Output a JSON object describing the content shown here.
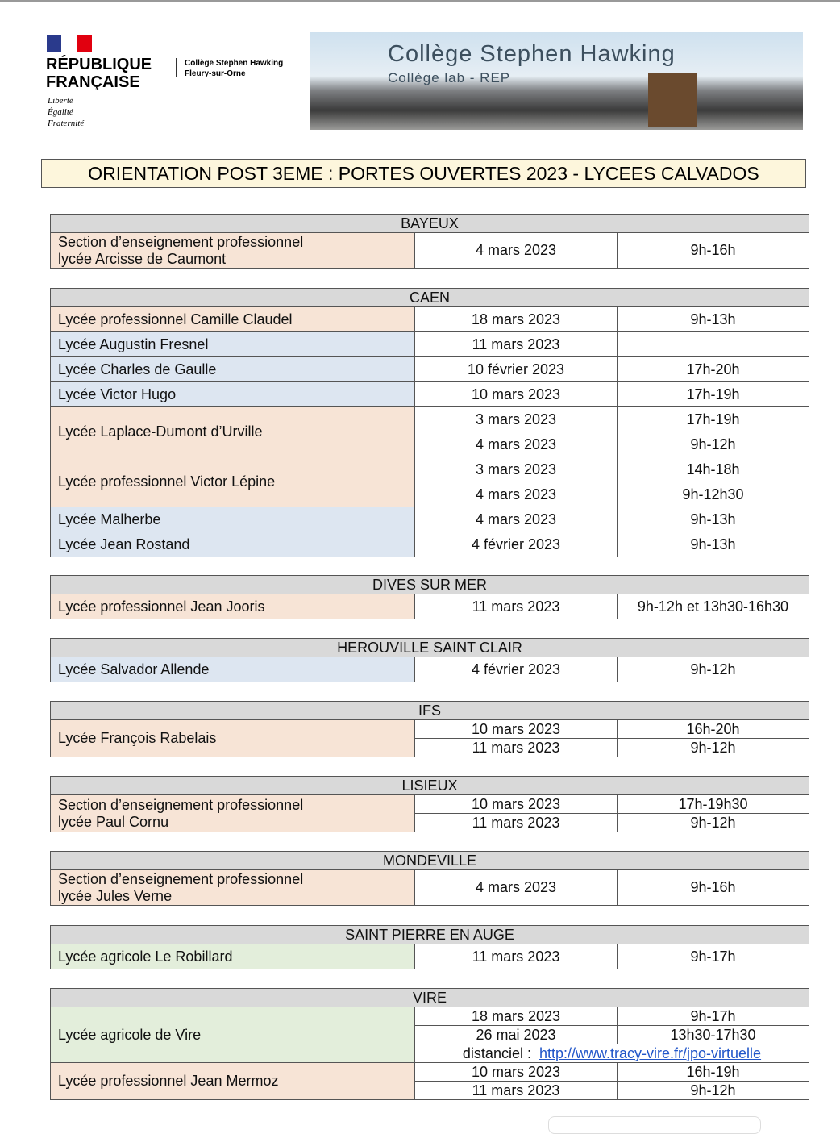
{
  "header": {
    "republic": [
      "RÉPUBLIQUE",
      "FRANÇAISE"
    ],
    "motto": [
      "Liberté",
      "Égalité",
      "Fraternité"
    ],
    "school": [
      "Collège Stephen Hawking",
      "Fleury-sur-Orne"
    ],
    "banner_title": "Collège Stephen Hawking",
    "banner_subtitle": "Collège lab - REP"
  },
  "title": "ORIENTATION POST 3EME : PORTES OUVERTES 2023 - LYCEES CALVADOS",
  "sections": [
    {
      "city": "BAYEUX",
      "schools": [
        {
          "name": [
            "Section d’enseignement professionnel",
            "lycée Arcisse de Caumont"
          ],
          "color": "#f7e4d6",
          "dates": [
            {
              "date": "4 mars 2023",
              "time": "9h-16h"
            }
          ]
        }
      ]
    },
    {
      "city": "CAEN",
      "schools": [
        {
          "name": [
            "Lycée professionnel Camille Claudel"
          ],
          "color": "#f7e4d6",
          "dates": [
            {
              "date": "18 mars 2023",
              "time": "9h-13h"
            }
          ]
        },
        {
          "name": [
            "Lycée Augustin Fresnel"
          ],
          "color": "#dde6f1",
          "dates": [
            {
              "date": "11 mars 2023"
            }
          ]
        },
        {
          "name": [
            "Lycée Charles de Gaulle"
          ],
          "color": "#dde6f1",
          "dates": [
            {
              "date": "10 février 2023",
              "time": "17h-20h"
            }
          ]
        },
        {
          "name": [
            "Lycée Victor Hugo"
          ],
          "color": "#dde6f1",
          "dates": [
            {
              "date": "10 mars 2023",
              "time": "17h-19h"
            }
          ]
        },
        {
          "name": [
            "Lycée Laplace-Dumont d’Urville"
          ],
          "color": "#f7e4d6",
          "dates": [
            {
              "date": "3 mars 2023",
              "time": "17h-19h"
            },
            {
              "date": "4 mars 2023",
              "time": "9h-12h"
            }
          ]
        },
        {
          "name": [
            "Lycée professionnel Victor Lépine"
          ],
          "color": "#f7e4d6",
          "dates": [
            {
              "date": "3 mars 2023",
              "time": "14h-18h"
            },
            {
              "date": "4 mars 2023",
              "time": "9h-12h30"
            }
          ]
        },
        {
          "name": [
            "Lycée Malherbe"
          ],
          "color": "#dde6f1",
          "dates": [
            {
              "date": "4 mars 2023",
              "time": "9h-13h"
            }
          ]
        },
        {
          "name": [
            "Lycée Jean Rostand"
          ],
          "color": "#dde6f1",
          "dates": [
            {
              "date": "4 février 2023",
              "time": "9h-13h"
            }
          ]
        }
      ]
    },
    {
      "city": "DIVES SUR MER",
      "schools": [
        {
          "name": [
            "Lycée professionnel Jean Jooris"
          ],
          "color": "#f7e4d6",
          "dates": [
            {
              "date": "11 mars 2023",
              "time": "9h-12h et 13h30-16h30"
            }
          ]
        }
      ]
    },
    {
      "city": "HEROUVILLE SAINT CLAIR",
      "schools": [
        {
          "name": [
            "Lycée Salvador Allende"
          ],
          "color": "#dde6f1",
          "dates": [
            {
              "date": "4 février 2023",
              "time": "9h-12h"
            }
          ]
        }
      ]
    },
    {
      "city": "IFS",
      "schools": [
        {
          "name": [
            "Lycée François Rabelais"
          ],
          "color": "#f7e4d6",
          "dates": [
            {
              "date": "10 mars 2023",
              "time": "16h-20h"
            },
            {
              "date": "11 mars 2023",
              "time": "9h-12h"
            }
          ]
        }
      ]
    },
    {
      "city": "LISIEUX",
      "schools": [
        {
          "name": [
            "Section d’enseignement professionnel",
            "lycée Paul Cornu"
          ],
          "color": "#f7e4d6",
          "dates": [
            {
              "date": "10 mars 2023",
              "time": "17h-19h30"
            },
            {
              "date": "11 mars 2023",
              "time": "9h-12h"
            }
          ]
        }
      ]
    },
    {
      "city": "MONDEVILLE",
      "schools": [
        {
          "name": [
            "Section d’enseignement professionnel",
            "lycée Jules Verne"
          ],
          "color": "#f7e4d6",
          "dates": [
            {
              "date": "4 mars 2023",
              "time": "9h-16h"
            }
          ]
        }
      ]
    },
    {
      "city": "SAINT PIERRE EN AUGE",
      "schools": [
        {
          "name": [
            "Lycée agricole Le Robillard"
          ],
          "color": "#e3eedb",
          "dates": [
            {
              "date": "11 mars 2023",
              "time": "9h-17h"
            }
          ]
        }
      ]
    },
    {
      "city": "VIRE",
      "schools": [
        {
          "name": [
            "Lycée agricole de Vire"
          ],
          "color": "#e3eedb",
          "dates": [
            {
              "date": "18 mars 2023",
              "time": "9h-17h"
            },
            {
              "date": "26 mai 2023",
              "time": "13h30-17h30"
            }
          ],
          "distanciel": {
            "label": "distanciel :",
            "url": "http://www.tracy-vire.fr/jpo-virtuelle"
          }
        },
        {
          "name": [
            "Lycée professionnel Jean Mermoz"
          ],
          "color": "#f7e4d6",
          "dates": [
            {
              "date": "10 mars 2023",
              "time": "16h-19h"
            },
            {
              "date": "11 mars 2023",
              "time": "9h-12h"
            }
          ]
        }
      ]
    }
  ]
}
